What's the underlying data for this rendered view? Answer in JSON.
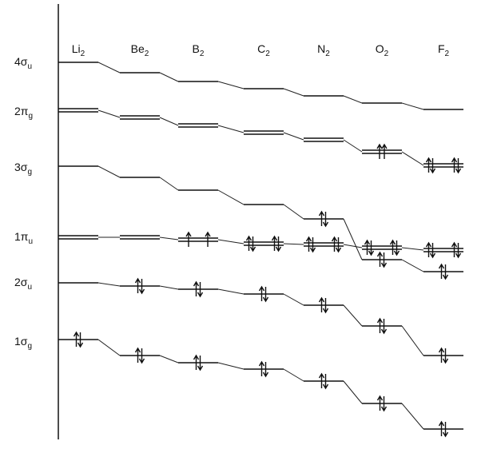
{
  "columns": [
    {
      "base": "Li",
      "sub": "2"
    },
    {
      "base": "Be",
      "sub": "2"
    },
    {
      "base": "B",
      "sub": "2"
    },
    {
      "base": "C",
      "sub": "2"
    },
    {
      "base": "N",
      "sub": "2"
    },
    {
      "base": "O",
      "sub": "2"
    },
    {
      "base": "F",
      "sub": "2"
    }
  ],
  "orbitals": [
    {
      "prefix": "4σ",
      "sub": "u"
    },
    {
      "prefix": "2π",
      "sub": "g"
    },
    {
      "prefix": "3σ",
      "sub": "g"
    },
    {
      "prefix": "1π",
      "sub": "u"
    },
    {
      "prefix": "2σ",
      "sub": "u"
    },
    {
      "prefix": "1σ",
      "sub": "g"
    }
  ]
}
